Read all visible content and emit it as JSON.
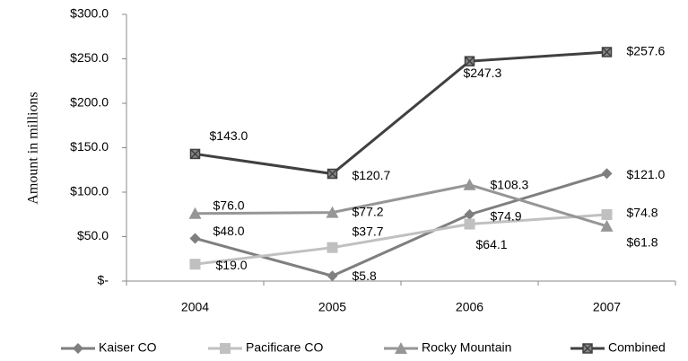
{
  "chart_data": {
    "type": "line",
    "y_label": "Amount in millions",
    "categories": [
      "2004",
      "2005",
      "2006",
      "2007"
    ],
    "series": [
      {
        "name": "Kaiser CO",
        "color": "#7f7f7f",
        "marker": "diamond",
        "values": [
          48.0,
          5.8,
          74.9,
          121.0
        ],
        "value_labels": [
          "$48.0",
          "$5.8",
          "$74.9",
          "$121.0"
        ]
      },
      {
        "name": "Pacificare CO",
        "color": "#c0c0c0",
        "marker": "square",
        "values": [
          19.0,
          37.7,
          64.1,
          74.8
        ],
        "value_labels": [
          "$19.0",
          "$37.7",
          "$64.1",
          "$74.8"
        ]
      },
      {
        "name": "Rocky Mountain",
        "color": "#969696",
        "marker": "triangle",
        "values": [
          76.0,
          77.2,
          108.3,
          61.8
        ],
        "value_labels": [
          "$76.0",
          "$77.2",
          "$108.3",
          "$61.8"
        ]
      },
      {
        "name": "Combined",
        "color": "#404040",
        "marker": "xsquare",
        "values": [
          143.0,
          120.7,
          247.3,
          257.6
        ],
        "value_labels": [
          "$143.0",
          "$120.7",
          "$247.3",
          "$257.6"
        ]
      }
    ],
    "ylim": [
      0,
      300
    ],
    "yticks": [
      {
        "value": 0,
        "label": "$-"
      },
      {
        "value": 50,
        "label": "$50.0"
      },
      {
        "value": 100,
        "label": "$100.0"
      },
      {
        "value": 150,
        "label": "$150.0"
      },
      {
        "value": 200,
        "label": "$200.0"
      },
      {
        "value": 250,
        "label": "$250.0"
      },
      {
        "value": 300,
        "label": "$300.0"
      }
    ],
    "legend": "bottom"
  }
}
